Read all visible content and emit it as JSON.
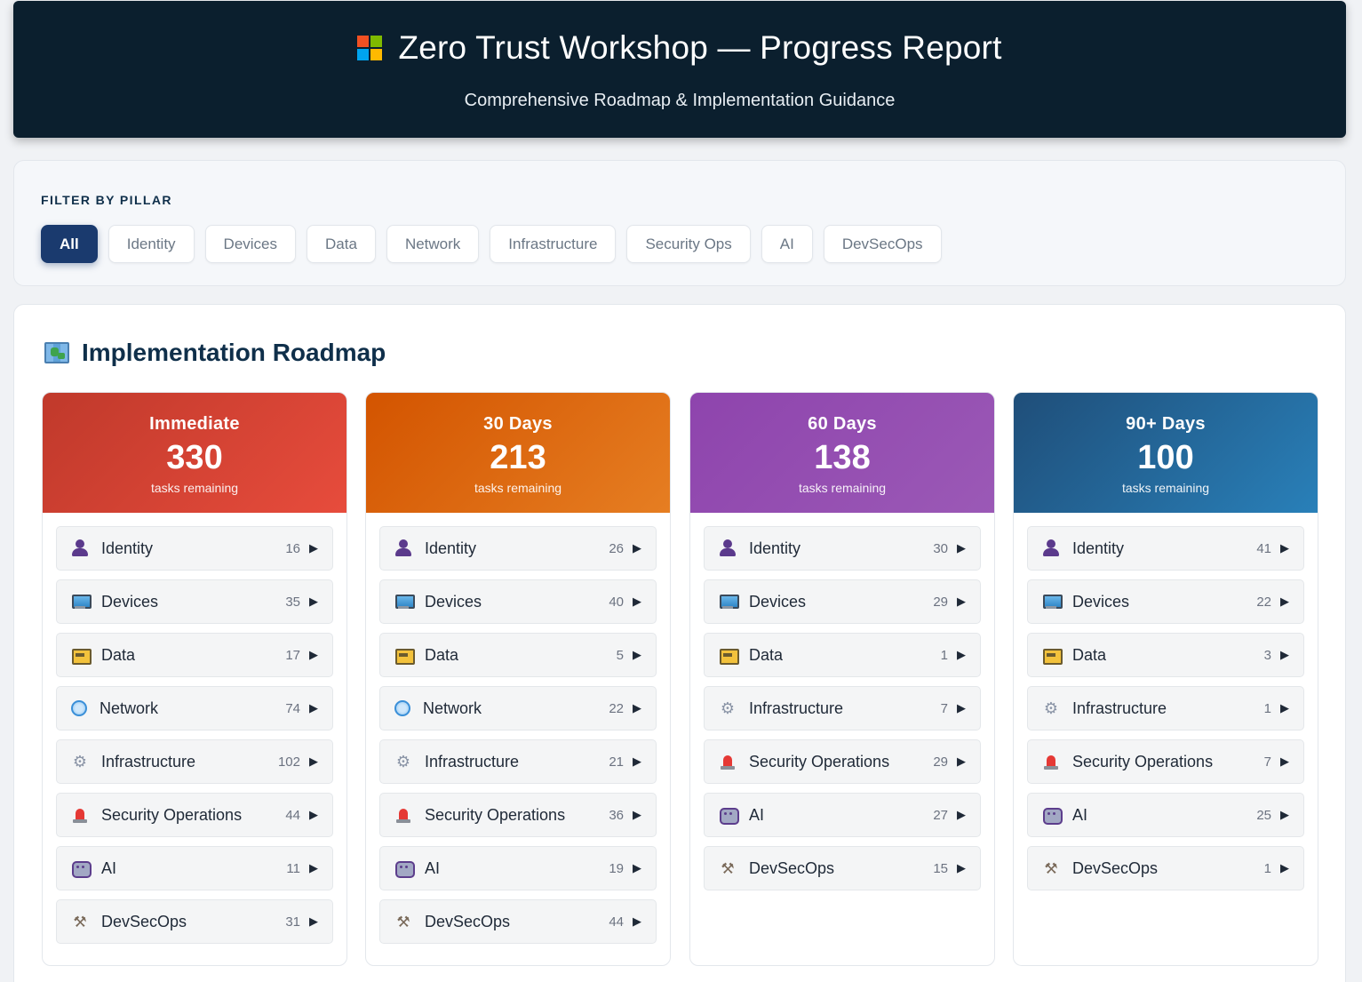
{
  "header": {
    "title": "Zero Trust Workshop — Progress Report",
    "subtitle": "Comprehensive Roadmap & Implementation Guidance"
  },
  "filter": {
    "label": "FILTER BY PILLAR",
    "pills": [
      "All",
      "Identity",
      "Devices",
      "Data",
      "Network",
      "Infrastructure",
      "Security Ops",
      "AI",
      "DevSecOps"
    ],
    "active": "All"
  },
  "roadmap": {
    "title": "Implementation Roadmap",
    "columns": [
      {
        "label": "Immediate",
        "count": "330",
        "sub": "tasks remaining",
        "gradient": [
          "#c0392b",
          "#e74c3c"
        ],
        "rows": [
          {
            "name": "Identity",
            "num": "16",
            "icon": "identity"
          },
          {
            "name": "Devices",
            "num": "35",
            "icon": "devices"
          },
          {
            "name": "Data",
            "num": "17",
            "icon": "data"
          },
          {
            "name": "Network",
            "num": "74",
            "icon": "network"
          },
          {
            "name": "Infrastructure",
            "num": "102",
            "icon": "infra"
          },
          {
            "name": "Security Operations",
            "num": "44",
            "icon": "secops"
          },
          {
            "name": "AI",
            "num": "11",
            "icon": "ai"
          },
          {
            "name": "DevSecOps",
            "num": "31",
            "icon": "devsecops"
          }
        ]
      },
      {
        "label": "30 Days",
        "count": "213",
        "sub": "tasks remaining",
        "gradient": [
          "#d35400",
          "#e67e22"
        ],
        "rows": [
          {
            "name": "Identity",
            "num": "26",
            "icon": "identity"
          },
          {
            "name": "Devices",
            "num": "40",
            "icon": "devices"
          },
          {
            "name": "Data",
            "num": "5",
            "icon": "data"
          },
          {
            "name": "Network",
            "num": "22",
            "icon": "network"
          },
          {
            "name": "Infrastructure",
            "num": "21",
            "icon": "infra"
          },
          {
            "name": "Security Operations",
            "num": "36",
            "icon": "secops"
          },
          {
            "name": "AI",
            "num": "19",
            "icon": "ai"
          },
          {
            "name": "DevSecOps",
            "num": "44",
            "icon": "devsecops"
          }
        ]
      },
      {
        "label": "60 Days",
        "count": "138",
        "sub": "tasks remaining",
        "gradient": [
          "#8e44ad",
          "#9b59b6"
        ],
        "rows": [
          {
            "name": "Identity",
            "num": "30",
            "icon": "identity"
          },
          {
            "name": "Devices",
            "num": "29",
            "icon": "devices"
          },
          {
            "name": "Data",
            "num": "1",
            "icon": "data"
          },
          {
            "name": "Infrastructure",
            "num": "7",
            "icon": "infra"
          },
          {
            "name": "Security Operations",
            "num": "29",
            "icon": "secops"
          },
          {
            "name": "AI",
            "num": "27",
            "icon": "ai"
          },
          {
            "name": "DevSecOps",
            "num": "15",
            "icon": "devsecops"
          }
        ]
      },
      {
        "label": "90+ Days",
        "count": "100",
        "sub": "tasks remaining",
        "gradient": [
          "#1f4e79",
          "#2980b9"
        ],
        "rows": [
          {
            "name": "Identity",
            "num": "41",
            "icon": "identity"
          },
          {
            "name": "Devices",
            "num": "22",
            "icon": "devices"
          },
          {
            "name": "Data",
            "num": "3",
            "icon": "data"
          },
          {
            "name": "Infrastructure",
            "num": "1",
            "icon": "infra"
          },
          {
            "name": "Security Operations",
            "num": "7",
            "icon": "secops"
          },
          {
            "name": "AI",
            "num": "25",
            "icon": "ai"
          },
          {
            "name": "DevSecOps",
            "num": "1",
            "icon": "devsecops"
          }
        ]
      }
    ]
  }
}
